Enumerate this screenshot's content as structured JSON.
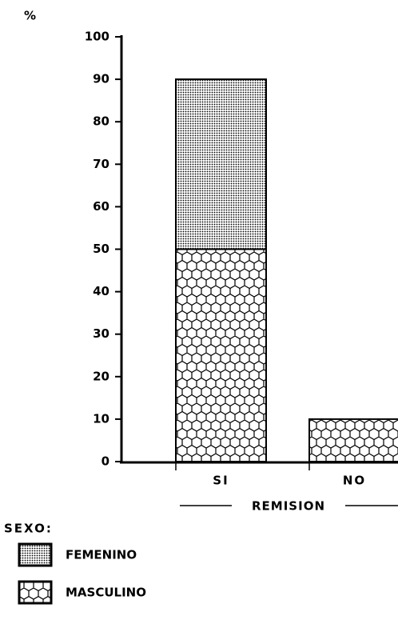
{
  "chart_data": {
    "type": "stacked_bar",
    "y_label": "%",
    "x_label": "REMISION",
    "legend_title": "SEXO:",
    "categories": [
      "SI",
      "NO"
    ],
    "series": [
      {
        "name": "MASCULINO",
        "values": [
          50,
          10
        ]
      },
      {
        "name": "FEMENINO",
        "values": [
          40,
          0
        ]
      }
    ],
    "ylim": [
      0,
      100
    ],
    "yticks": [
      0,
      10,
      20,
      30,
      40,
      50,
      60,
      70,
      80,
      90,
      100
    ]
  }
}
